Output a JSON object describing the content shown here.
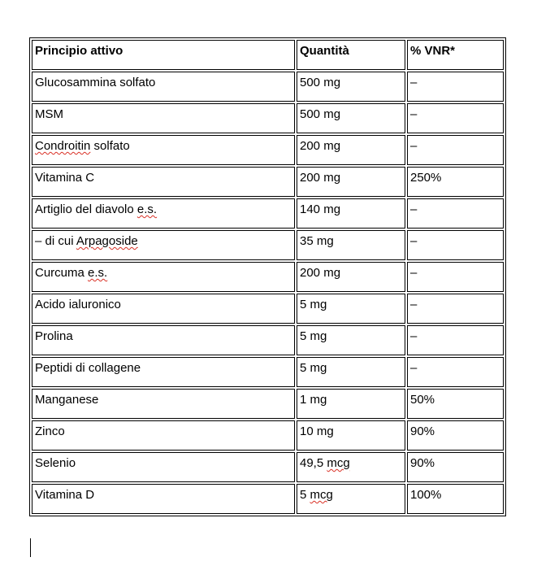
{
  "colors": {
    "spellcheck_underline": "#d93025",
    "table_border": "#000000",
    "text": "#000000",
    "background": "#ffffff"
  },
  "table": {
    "headers": [
      "Principio attivo",
      "Quantità",
      "% VNR*"
    ],
    "rows": [
      {
        "cells": [
          [
            {
              "t": "Glucosammina solfato"
            }
          ],
          [
            {
              "t": "500 mg"
            }
          ],
          [
            {
              "t": "–"
            }
          ]
        ]
      },
      {
        "cells": [
          [
            {
              "t": "MSM"
            }
          ],
          [
            {
              "t": "500 mg"
            }
          ],
          [
            {
              "t": "–"
            }
          ]
        ]
      },
      {
        "cells": [
          [
            {
              "t": "Condroitin",
              "mis": true
            },
            {
              "t": " solfato"
            }
          ],
          [
            {
              "t": "200 mg"
            }
          ],
          [
            {
              "t": "–"
            }
          ]
        ]
      },
      {
        "cells": [
          [
            {
              "t": "Vitamina C"
            }
          ],
          [
            {
              "t": "200 mg"
            }
          ],
          [
            {
              "t": "250%"
            }
          ]
        ]
      },
      {
        "cells": [
          [
            {
              "t": "Artiglio del diavolo "
            },
            {
              "t": "e.s.",
              "mis": true
            }
          ],
          [
            {
              "t": "140 mg"
            }
          ],
          [
            {
              "t": "–"
            }
          ]
        ]
      },
      {
        "cells": [
          [
            {
              "t": "– di cui "
            },
            {
              "t": "Arpagoside",
              "mis": true
            }
          ],
          [
            {
              "t": "35 mg"
            }
          ],
          [
            {
              "t": "–"
            }
          ]
        ]
      },
      {
        "cells": [
          [
            {
              "t": "Curcuma "
            },
            {
              "t": "e.s.",
              "mis": true
            }
          ],
          [
            {
              "t": "200 mg"
            }
          ],
          [
            {
              "t": "–"
            }
          ]
        ]
      },
      {
        "cells": [
          [
            {
              "t": "Acido ialuronico"
            }
          ],
          [
            {
              "t": "5 mg"
            }
          ],
          [
            {
              "t": "–"
            }
          ]
        ]
      },
      {
        "cells": [
          [
            {
              "t": "Prolina"
            }
          ],
          [
            {
              "t": "5 mg"
            }
          ],
          [
            {
              "t": "–"
            }
          ]
        ]
      },
      {
        "cells": [
          [
            {
              "t": "Peptidi di collagene"
            }
          ],
          [
            {
              "t": "5 mg"
            }
          ],
          [
            {
              "t": "–"
            }
          ]
        ]
      },
      {
        "cells": [
          [
            {
              "t": "Manganese"
            }
          ],
          [
            {
              "t": "1 mg"
            }
          ],
          [
            {
              "t": "50%"
            }
          ]
        ]
      },
      {
        "cells": [
          [
            {
              "t": "Zinco"
            }
          ],
          [
            {
              "t": "10 mg"
            }
          ],
          [
            {
              "t": "90%"
            }
          ]
        ]
      },
      {
        "cells": [
          [
            {
              "t": "Selenio"
            }
          ],
          [
            {
              "t": "49,5 "
            },
            {
              "t": "mcg",
              "mis": true
            }
          ],
          [
            {
              "t": "90%"
            }
          ]
        ]
      },
      {
        "cells": [
          [
            {
              "t": "Vitamina D"
            }
          ],
          [
            {
              "t": "5 "
            },
            {
              "t": "mcg",
              "mis": true
            }
          ],
          [
            {
              "t": "100%"
            }
          ]
        ]
      }
    ]
  },
  "document": {
    "caret_visible": true
  }
}
